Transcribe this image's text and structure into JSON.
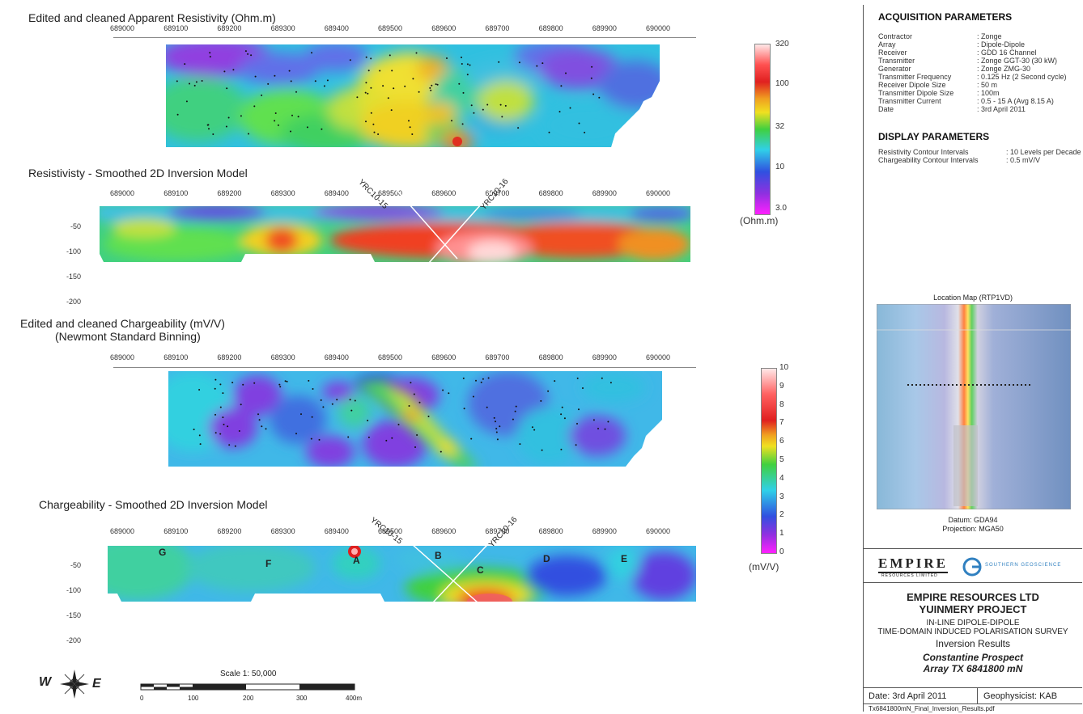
{
  "panels": {
    "app_res_title": "Edited and cleaned Apparent Resistivity (Ohm.m)",
    "res_inv_title": "Resistivisty - Smoothed 2D Inversion Model",
    "charge_title_1": "Edited and cleaned Chargeability  (mV/V)",
    "charge_title_2": "(Newmont Standard Binning)",
    "charge_inv_title": "Chargeability - Smoothed 2D Inversion Model"
  },
  "x_ticks": [
    "689000",
    "689100",
    "689200",
    "689300",
    "689400",
    "689500",
    "689600",
    "689700",
    "689800",
    "689900",
    "690000"
  ],
  "y_ticks": [
    "-50",
    "-100",
    "-150",
    "-200"
  ],
  "drillholes": [
    "YRC10-15",
    "YRC10-16"
  ],
  "anomaly_labels": [
    "G",
    "F",
    "A",
    "B",
    "C",
    "D",
    "E"
  ],
  "res_colorbar": {
    "ticks": [
      "320",
      "100",
      "32",
      "10",
      "3.0"
    ],
    "unit": "(Ohm.m)"
  },
  "charge_colorbar": {
    "ticks": [
      "10",
      "9",
      "8",
      "7",
      "6",
      "5",
      "4",
      "3",
      "2",
      "1",
      "0"
    ],
    "unit": "(mV/V)"
  },
  "acquisition": {
    "heading": "ACQUISITION PARAMETERS",
    "rows": [
      {
        "k": "Contractor",
        "v": ": Zonge"
      },
      {
        "k": "Array",
        "v": ":  Dipole-Dipole"
      },
      {
        "k": "Receiver",
        "v": ": GDD 16 Channel"
      },
      {
        "k": "Transmitter",
        "v": ": Zonge GGT-30 (30 kW)"
      },
      {
        "k": "Generator",
        "v": ": Zonge ZMG-30"
      },
      {
        "k": "Transmitter Frequency",
        "v": ": 0.125 Hz (2 Second cycle)"
      },
      {
        "k": "Receiver Dipole Size",
        "v": ": 50 m"
      },
      {
        "k": "Transmitter Dipole Size",
        "v": ": 100m"
      },
      {
        "k": "Transmitter Current",
        "v": ": 0.5 - 15 A (Avg 8.15 A)"
      },
      {
        "k": "Date",
        "v": ": 3rd April 2011"
      }
    ]
  },
  "display": {
    "heading": "DISPLAY PARAMETERS",
    "rows": [
      {
        "k": "Resistivity Contour Intervals",
        "v": ": 10 Levels per Decade"
      },
      {
        "k": "Chargeability Contour Intervals",
        "v": ": 0.5 mV/V"
      }
    ]
  },
  "location_map": {
    "title": "Location Map (RTP1VD)",
    "datum": "Datum: GDA94",
    "projection": "Projection: MGA50"
  },
  "logos": {
    "company": "EMPIRE",
    "company_sub": "RESOURCES LIMITED",
    "partner": "SOUTHERN GEOSCIENCE"
  },
  "title_block": {
    "company": "EMPIRE RESOURCES LTD",
    "project": "YUINMERY PROJECT",
    "survey1": "IN-LINE DIPOLE-DIPOLE",
    "survey2": "TIME-DOMAIN INDUCED POLARISATION SURVEY",
    "results": "Inversion Results",
    "prospect": "Constantine Prospect",
    "array": "Array TX 6841800 mN",
    "date": "Date: 3rd April 2011",
    "geophysicist": "Geophysicist: KAB",
    "filename": "Tx6841800mN_Final_Inversion_Results.pdf"
  },
  "scale": {
    "title": "Scale 1: 50,000",
    "ticks": [
      "0",
      "100",
      "200",
      "300",
      "400m"
    ]
  },
  "compass": {
    "w": "W",
    "e": "E"
  },
  "colors": {
    "magenta": "#e020e0",
    "blue": "#3050e0",
    "cyan": "#30d0e8",
    "green": "#40d040",
    "yellow": "#f0e020",
    "orange": "#f08020",
    "red": "#e02020",
    "pink": "#ffb0b0"
  }
}
